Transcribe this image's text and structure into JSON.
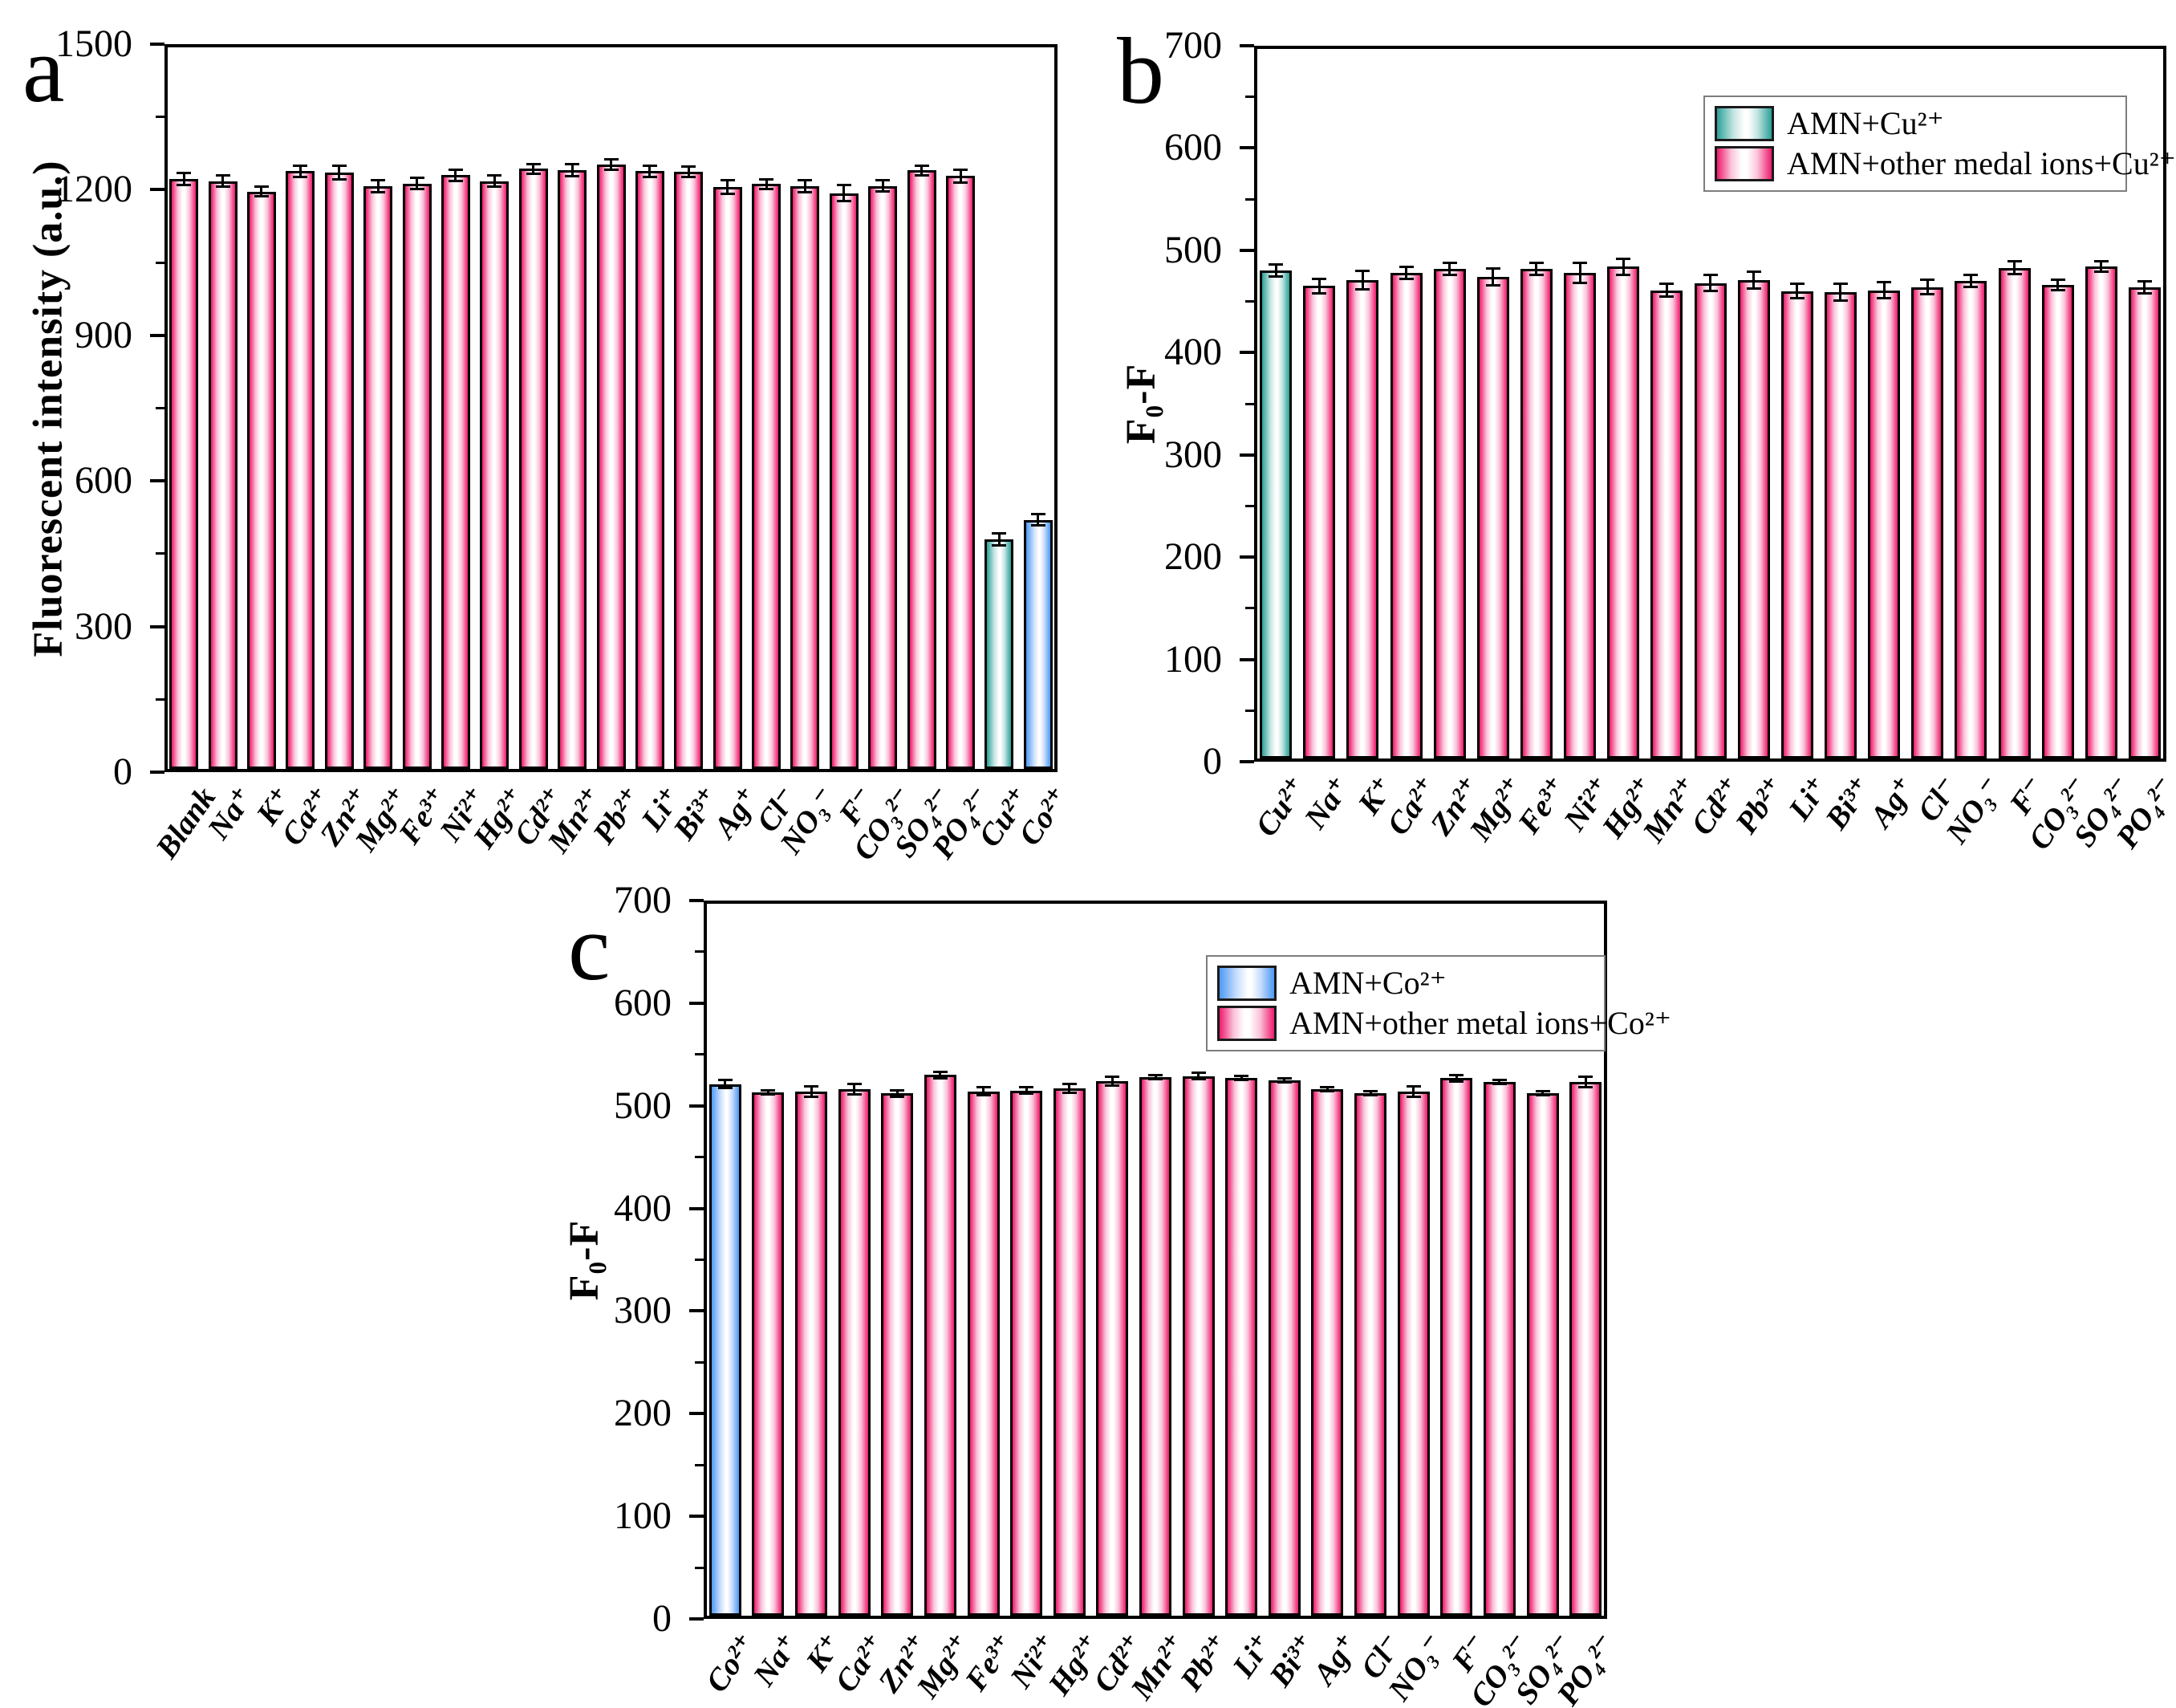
{
  "figure": {
    "background": "#ffffff",
    "panels": [
      "a",
      "b",
      "c"
    ]
  },
  "colors": {
    "bar_outline": "#000000",
    "pink_edge": "#ee1c6d",
    "teal_edge": "#2e9f98",
    "blue_edge": "#4d9bf5",
    "axis": "#000000"
  },
  "chart_data": [
    {
      "id": "a",
      "type": "bar",
      "panel_label": "a",
      "ylabel": "Fluorescent intensity (a.u.)",
      "xlabel": "",
      "ylim": [
        0,
        1500
      ],
      "ytick_step": 300,
      "yminor_step": 150,
      "grid": false,
      "legend": null,
      "categories": [
        "Blank",
        "Na⁺",
        "K⁺",
        "Ca²⁺",
        "Zn²⁺",
        "Mg²⁺",
        "Fe³⁺",
        "Ni²⁺",
        "Hg²⁺",
        "Cd²⁺",
        "Mn²⁺",
        "Pb²⁺",
        "Li⁺",
        "Bi³⁺",
        "Ag⁺",
        "Cl⁻",
        "NO₃⁻",
        "F⁻",
        "CO₃²⁻",
        "SO₄²⁻",
        "PO₄²⁻",
        "Cu²⁺",
        "Co²⁺"
      ],
      "values": [
        1222,
        1218,
        1196,
        1238,
        1236,
        1207,
        1213,
        1230,
        1218,
        1243,
        1240,
        1252,
        1238,
        1237,
        1205,
        1212,
        1207,
        1193,
        1208,
        1240,
        1228,
        480,
        520
      ],
      "errors": [
        12,
        12,
        10,
        12,
        14,
        12,
        12,
        12,
        12,
        10,
        12,
        10,
        12,
        10,
        14,
        10,
        12,
        16,
        12,
        10,
        14,
        12,
        12
      ],
      "bar_styles": [
        "pink",
        "pink",
        "pink",
        "pink",
        "pink",
        "pink",
        "pink",
        "pink",
        "pink",
        "pink",
        "pink",
        "pink",
        "pink",
        "pink",
        "pink",
        "pink",
        "pink",
        "pink",
        "pink",
        "pink",
        "pink",
        "teal",
        "blue"
      ]
    },
    {
      "id": "b",
      "type": "bar",
      "panel_label": "b",
      "ylabel": "F₀-F",
      "xlabel": "",
      "ylim": [
        0,
        700
      ],
      "ytick_step": 100,
      "yminor_step": 50,
      "grid": false,
      "legend": {
        "position": "top-right",
        "entries": [
          {
            "label": "AMN+Cu²⁺",
            "style": "teal"
          },
          {
            "label": "AMN+other medal ions+Cu²⁺",
            "style": "pink"
          }
        ]
      },
      "categories": [
        "Cu²⁺",
        "Na⁺",
        "K⁺",
        "Ca²⁺",
        "Zn²⁺",
        "Mg²⁺",
        "Fe³⁺",
        "Ni²⁺",
        "Hg²⁺",
        "Mn²⁺",
        "Cd²⁺",
        "Pb²⁺",
        "Li⁺",
        "Bi³⁺",
        "Ag⁺",
        "Cl⁻",
        "NO₃⁻",
        "F⁻",
        "CO₃²⁻",
        "SO₄²⁻",
        "PO₄²⁻"
      ],
      "values": [
        480,
        465,
        471,
        478,
        482,
        474,
        482,
        478,
        484,
        461,
        468,
        471,
        460,
        459,
        461,
        464,
        470,
        483,
        466,
        484,
        464
      ],
      "errors": [
        6,
        7,
        9,
        6,
        6,
        8,
        6,
        10,
        8,
        6,
        8,
        8,
        7,
        8,
        8,
        7,
        6,
        6,
        5,
        5,
        6
      ],
      "bar_styles": [
        "teal",
        "pink",
        "pink",
        "pink",
        "pink",
        "pink",
        "pink",
        "pink",
        "pink",
        "pink",
        "pink",
        "pink",
        "pink",
        "pink",
        "pink",
        "pink",
        "pink",
        "pink",
        "pink",
        "pink",
        "pink"
      ]
    },
    {
      "id": "c",
      "type": "bar",
      "panel_label": "c",
      "ylabel": "F₀-F",
      "xlabel": "",
      "ylim": [
        0,
        700
      ],
      "ytick_step": 100,
      "yminor_step": 50,
      "grid": false,
      "legend": {
        "position": "top-right",
        "entries": [
          {
            "label": "AMN+Co²⁺",
            "style": "blue"
          },
          {
            "label": "AMN+other metal ions+Co²⁺",
            "style": "pink"
          }
        ]
      },
      "categories": [
        "Co²⁺",
        "Na⁺",
        "K⁺",
        "Ca²⁺",
        "Zn²⁺",
        "Mg²⁺",
        "Fe³⁺",
        "Ni²⁺",
        "Hg²⁺",
        "Cd²⁺",
        "Mn²⁺",
        "Pb²⁺",
        "Li⁺",
        "Bi³⁺",
        "Ag⁺",
        "Cl⁻",
        "NO₃⁻",
        "F⁻",
        "CO₃²⁻",
        "SO₄²⁻",
        "PO₄²⁻"
      ],
      "values": [
        521,
        513,
        514,
        516,
        512,
        530,
        514,
        515,
        517,
        524,
        528,
        529,
        527,
        525,
        516,
        512,
        514,
        527,
        523,
        512,
        523
      ],
      "errors": [
        4,
        2,
        5,
        5,
        3,
        3,
        4,
        3,
        4,
        4,
        2,
        3,
        2,
        2,
        2,
        2,
        5,
        3,
        2,
        2,
        5
      ],
      "bar_styles": [
        "blue",
        "pink",
        "pink",
        "pink",
        "pink",
        "pink",
        "pink",
        "pink",
        "pink",
        "pink",
        "pink",
        "pink",
        "pink",
        "pink",
        "pink",
        "pink",
        "pink",
        "pink",
        "pink",
        "pink",
        "pink"
      ]
    }
  ]
}
